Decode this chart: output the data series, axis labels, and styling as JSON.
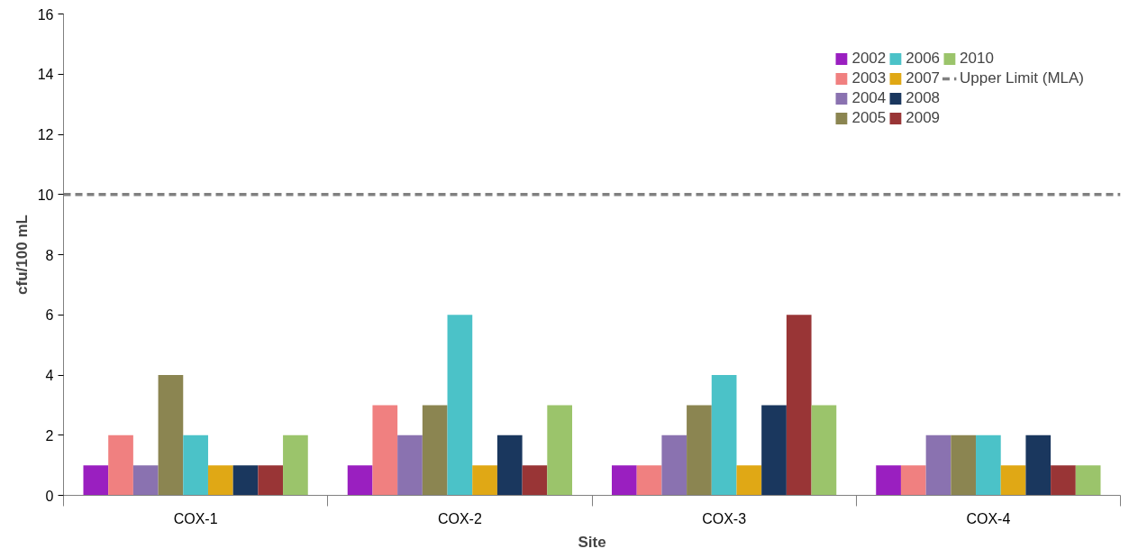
{
  "chart_data": {
    "type": "bar",
    "xlabel": "Site",
    "ylabel": "cfu/100 mL",
    "categories": [
      "COX-1",
      "COX-2",
      "COX-3",
      "COX-4"
    ],
    "series": [
      {
        "name": "2002",
        "color": "#9a1fc0",
        "values": [
          1,
          1,
          1,
          1
        ]
      },
      {
        "name": "2003",
        "color": "#f08080",
        "values": [
          2,
          3,
          1,
          1
        ]
      },
      {
        "name": "2004",
        "color": "#8a72b0",
        "values": [
          1,
          2,
          2,
          2
        ]
      },
      {
        "name": "2005",
        "color": "#8b8551",
        "values": [
          4,
          3,
          3,
          2
        ]
      },
      {
        "name": "2006",
        "color": "#4bc2c8",
        "values": [
          2,
          6,
          4,
          2
        ]
      },
      {
        "name": "2007",
        "color": "#e0a815",
        "values": [
          1,
          1,
          1,
          1
        ]
      },
      {
        "name": "2008",
        "color": "#1a375e",
        "values": [
          1,
          2,
          3,
          2
        ]
      },
      {
        "name": "2009",
        "color": "#993536",
        "values": [
          1,
          1,
          6,
          1
        ]
      },
      {
        "name": "2010",
        "color": "#9bc46b",
        "values": [
          2,
          3,
          3,
          1
        ]
      }
    ],
    "ylim": [
      0,
      16
    ],
    "yticks": [
      0,
      2,
      4,
      6,
      8,
      10,
      12,
      14,
      16
    ],
    "ref_lines": [
      {
        "axis": "y",
        "value": 10,
        "label": "Upper Limit (MLA)",
        "color": "#808080",
        "line_style": "dashed"
      }
    ],
    "grid": false,
    "legend": "top right"
  }
}
